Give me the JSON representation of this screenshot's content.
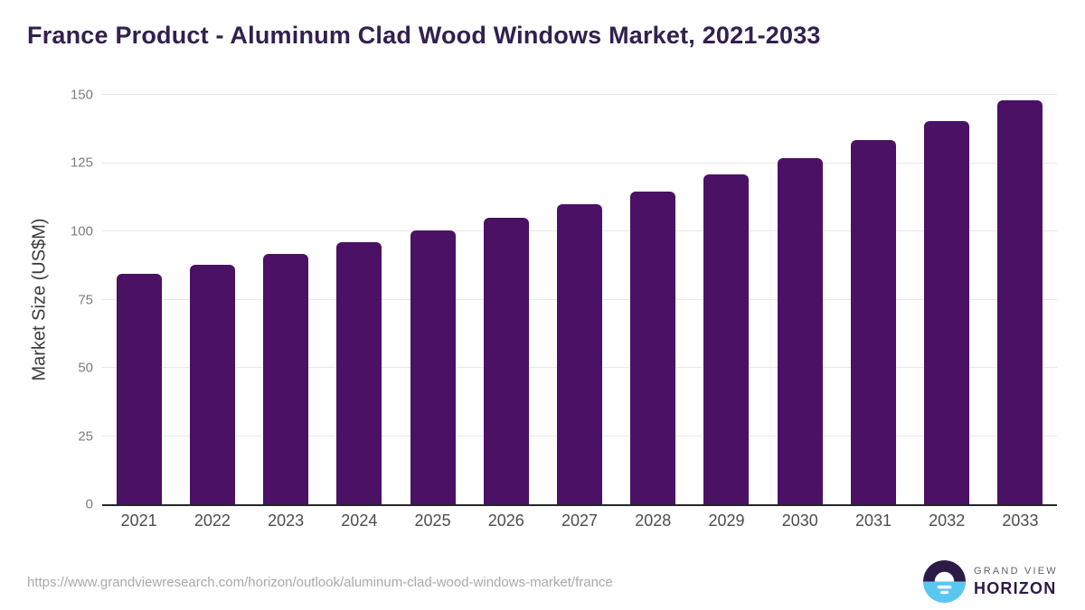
{
  "title": "France Product - Aluminum Clad Wood Windows Market, 2021-2033",
  "chart_data": {
    "type": "bar",
    "title": "France Product - Aluminum Clad Wood Windows Market, 2021-2033",
    "categories": [
      "2021",
      "2022",
      "2023",
      "2024",
      "2025",
      "2026",
      "2027",
      "2028",
      "2029",
      "2030",
      "2031",
      "2032",
      "2033"
    ],
    "values": [
      84.4,
      87.7,
      91.7,
      96.0,
      100.3,
      105.0,
      110.0,
      114.6,
      120.9,
      126.8,
      133.4,
      140.4,
      148.1
    ],
    "xlabel": "",
    "ylabel": "Market Size (US$M)",
    "ylim": [
      0,
      150
    ],
    "yticks": [
      0,
      25,
      50,
      75,
      100,
      125,
      150
    ],
    "grid": "horizontal",
    "legend": "none",
    "bar_color": "#4a1164"
  },
  "colors": {
    "bar": "#4a1164",
    "title_text": "#32204f",
    "axis_line": "#262626",
    "gridline": "#e7e7e7",
    "y_tick_text": "#7c7c7c",
    "x_tick_text": "#4d4d4d",
    "url_text": "#a9a9a9",
    "logo_purple": "#2e1a47",
    "logo_blue": "#59c7f0"
  },
  "footer": {
    "url": "https://www.grandviewresearch.com/horizon/outlook/aluminum-clad-wood-windows-market/france",
    "logo": {
      "top": "GRAND VIEW",
      "bottom": "HORIZON"
    }
  }
}
